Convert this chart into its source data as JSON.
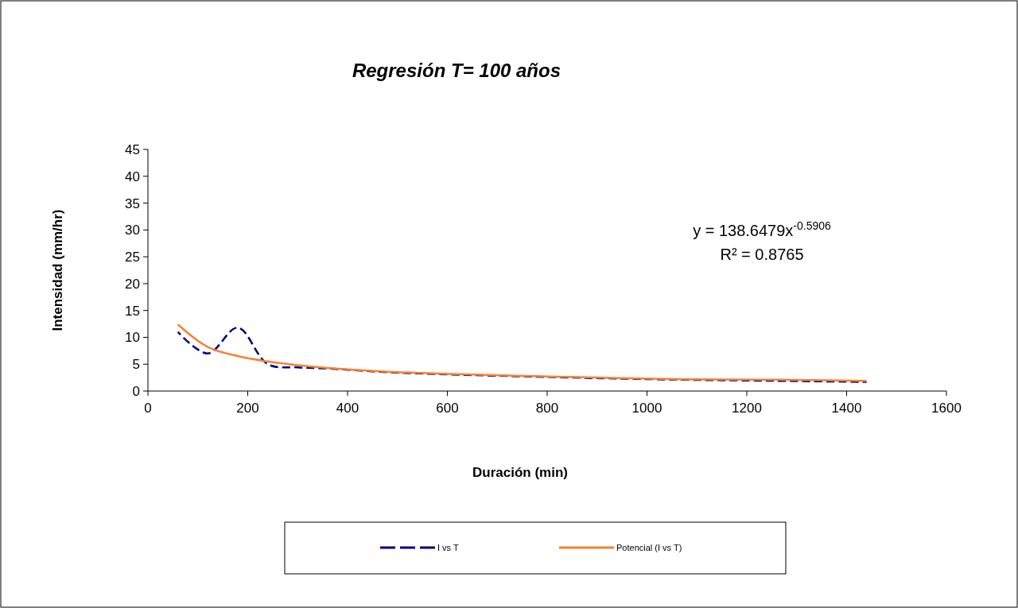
{
  "chart_data": {
    "type": "line",
    "title": "Regresión T= 100 años",
    "xlabel": "Duración (min)",
    "ylabel": "Intensidad (mm/hr)",
    "annotations": [
      "y = 138.6479x$^{-0.5906}$",
      "R² = 0.8765"
    ],
    "xlim": [
      0,
      1600
    ],
    "xticks": [
      0,
      200,
      400,
      600,
      800,
      1000,
      1200,
      1400,
      1600
    ],
    "ylim": [
      0,
      45
    ],
    "yticks": [
      0,
      5,
      10,
      15,
      20,
      25,
      30,
      35,
      40,
      45
    ],
    "grid": false,
    "legend": "bottom",
    "marker": "none",
    "series": [
      {
        "name": "I vs T",
        "color": "#000080",
        "line_style": "dashed",
        "x": [
          60,
          120,
          180,
          240,
          300,
          360,
          480,
          600,
          720,
          900,
          1080,
          1260,
          1440
        ],
        "values": [
          11.0,
          7.0,
          11.8,
          5.0,
          4.4,
          4.2,
          3.5,
          3.1,
          2.8,
          2.4,
          2.1,
          1.9,
          1.7
        ]
      },
      {
        "name": "Potencial (I vs T)",
        "color": "#f58231",
        "line_style": "solid",
        "x": [
          60,
          120,
          180,
          240,
          300,
          360,
          480,
          600,
          720,
          900,
          1080,
          1260,
          1440
        ],
        "values": [
          12.4,
          8.2,
          6.5,
          5.5,
          4.8,
          4.3,
          3.6,
          3.2,
          2.9,
          2.5,
          2.2,
          2.1,
          1.9
        ]
      }
    ]
  }
}
